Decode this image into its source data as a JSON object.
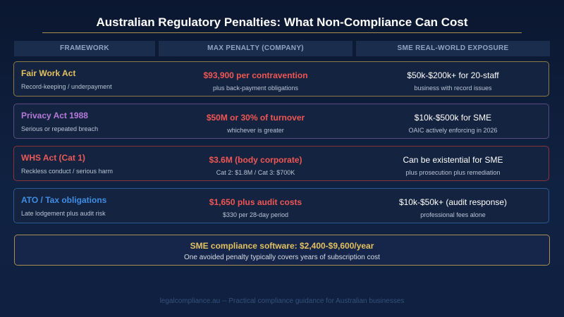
{
  "title": "Australian Regulatory Penalties: What Non-Compliance Can Cost",
  "headers": {
    "framework": "FRAMEWORK",
    "max_penalty": "MAX PENALTY (COMPANY)",
    "exposure": "SME REAL-WORLD EXPOSURE"
  },
  "rows": [
    {
      "name": "Fair Work Act",
      "desc": "Record-keeping / underpayment",
      "penalty": "$93,900 per contravention",
      "penalty_note": "plus back-payment obligations",
      "exposure": "$50k-$200k+ for 20-staff",
      "exposure_note": "business with record issues"
    },
    {
      "name": "Privacy Act 1988",
      "desc": "Serious or repeated breach",
      "penalty": "$50M or 30% of turnover",
      "penalty_note": "whichever is greater",
      "exposure": "$10k-$500k for SME",
      "exposure_note": "OAIC actively enforcing in 2026"
    },
    {
      "name": "WHS Act (Cat 1)",
      "desc": "Reckless conduct / serious harm",
      "penalty": "$3.6M (body corporate)",
      "penalty_note": "Cat 2: $1.8M / Cat 3: $700K",
      "exposure": "Can be existential for SME",
      "exposure_note": "plus prosecution plus remediation"
    },
    {
      "name": "ATO / Tax obligations",
      "desc": "Late lodgement plus audit risk",
      "penalty": "$1,650 plus audit costs",
      "penalty_note": "$330 per 28-day period",
      "exposure": "$10k-$50k+ (audit response)",
      "exposure_note": "professional fees alone"
    }
  ],
  "callout": {
    "main": "SME compliance software: $2,400-$9,600/year",
    "sub": "One avoided penalty typically covers years of subscription cost"
  },
  "footer": "legalcompliance.au -- Practical compliance guidance for Australian businesses",
  "colors": {
    "background": "#0d1b35",
    "gold": "#e3c060",
    "purple": "#b57ad8",
    "red": "#ea5a58",
    "blue": "#3f8ee6",
    "penalty_red": "#ef5654"
  }
}
